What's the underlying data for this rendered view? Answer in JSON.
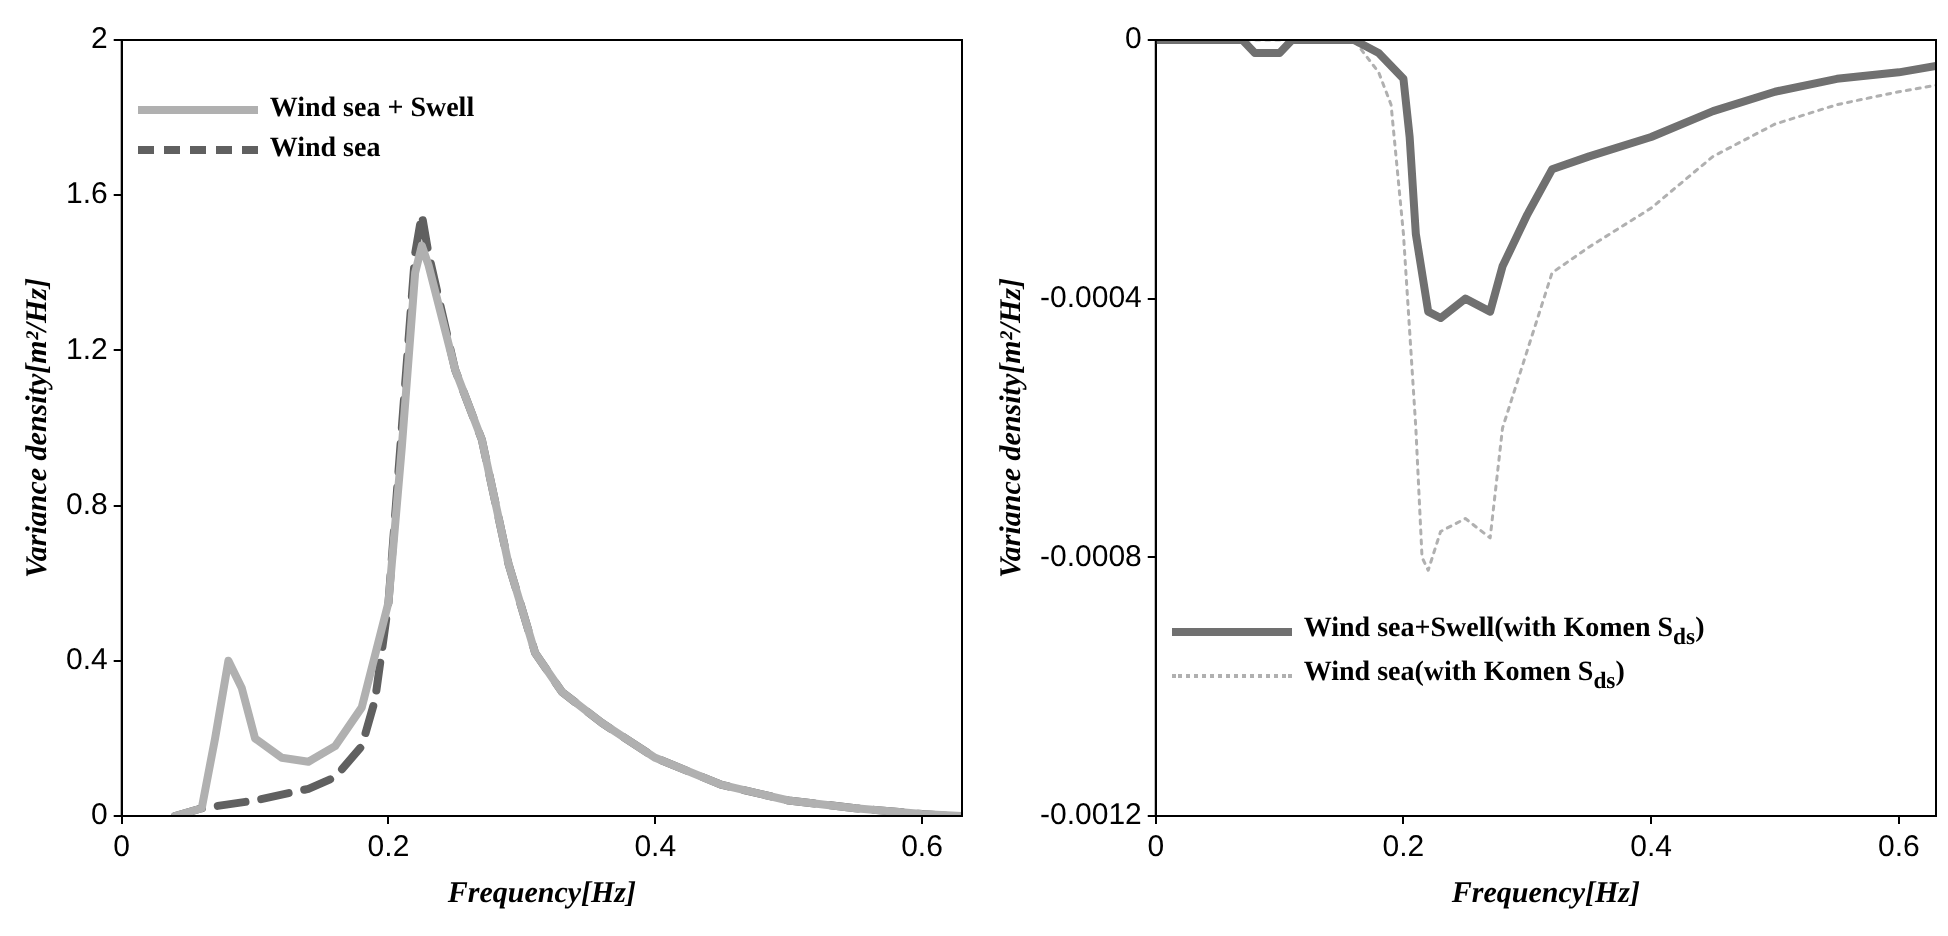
{
  "chart_data": [
    {
      "type": "line",
      "xlabel": "Frequency[Hz]",
      "ylabel": "Variance density[m²/Hz]",
      "xlim": [
        0,
        0.63
      ],
      "ylim": [
        0,
        2
      ],
      "xticks": [
        0,
        0.2,
        0.4,
        0.6
      ],
      "yticks": [
        0,
        0.4,
        0.8,
        1.2,
        1.6,
        2
      ],
      "grid": false,
      "legend": "top left",
      "marker": "none",
      "series": [
        {
          "name": "Wind sea + Swell",
          "color": "#b0b0b0",
          "line_style": "solid",
          "x": [
            0.04,
            0.06,
            0.07,
            0.08,
            0.09,
            0.1,
            0.12,
            0.14,
            0.16,
            0.18,
            0.2,
            0.21,
            0.22,
            0.225,
            0.23,
            0.25,
            0.27,
            0.29,
            0.31,
            0.33,
            0.36,
            0.4,
            0.45,
            0.5,
            0.55,
            0.6,
            0.63
          ],
          "values": [
            0,
            0.02,
            0.2,
            0.4,
            0.33,
            0.2,
            0.15,
            0.14,
            0.18,
            0.28,
            0.55,
            0.95,
            1.4,
            1.47,
            1.42,
            1.15,
            0.97,
            0.65,
            0.42,
            0.32,
            0.24,
            0.15,
            0.08,
            0.04,
            0.02,
            0.005,
            0
          ]
        },
        {
          "name": "Wind sea",
          "color": "#606060",
          "line_style": "dashed",
          "x": [
            0.04,
            0.06,
            0.1,
            0.14,
            0.16,
            0.18,
            0.19,
            0.2,
            0.21,
            0.22,
            0.225,
            0.23,
            0.25,
            0.27,
            0.29,
            0.31,
            0.33,
            0.36,
            0.4,
            0.45,
            0.5,
            0.55,
            0.6,
            0.62
          ],
          "values": [
            0,
            0.02,
            0.04,
            0.07,
            0.1,
            0.18,
            0.3,
            0.55,
            1.0,
            1.45,
            1.55,
            1.45,
            1.15,
            0.97,
            0.65,
            0.42,
            0.32,
            0.24,
            0.15,
            0.08,
            0.04,
            0.02,
            0.005,
            0
          ]
        }
      ]
    },
    {
      "type": "line",
      "xlabel": "Frequency[Hz]",
      "ylabel": "Variance density[m²/Hz]",
      "xlim": [
        0,
        0.63
      ],
      "ylim": [
        -0.0012,
        0
      ],
      "xticks": [
        0,
        0.2,
        0.4,
        0.6
      ],
      "yticks": [
        -0.0012,
        -0.0008,
        -0.0004,
        0
      ],
      "grid": false,
      "legend": "bottom left",
      "marker": "none",
      "series": [
        {
          "name": "Wind sea+Swell(with Komen S$_{ds}$)",
          "color": "#707070",
          "line_style": "solid",
          "x": [
            0,
            0.07,
            0.08,
            0.1,
            0.11,
            0.16,
            0.18,
            0.2,
            0.205,
            0.21,
            0.22,
            0.23,
            0.25,
            0.27,
            0.28,
            0.3,
            0.32,
            0.35,
            0.4,
            0.45,
            0.5,
            0.55,
            0.6,
            0.63
          ],
          "values": [
            0,
            0,
            -2e-05,
            -2e-05,
            0,
            0,
            -2e-05,
            -6e-05,
            -0.00015,
            -0.0003,
            -0.00042,
            -0.00043,
            -0.0004,
            -0.00042,
            -0.00035,
            -0.00027,
            -0.0002,
            -0.00018,
            -0.00015,
            -0.00011,
            -8e-05,
            -6e-05,
            -5e-05,
            -4e-05
          ]
        },
        {
          "name": "Wind sea(with Komen S$_{ds}$)",
          "color": "#b0b0b0",
          "line_style": "dotted",
          "x": [
            0,
            0.16,
            0.18,
            0.19,
            0.2,
            0.21,
            0.215,
            0.22,
            0.23,
            0.25,
            0.27,
            0.28,
            0.3,
            0.32,
            0.35,
            0.4,
            0.45,
            0.5,
            0.55,
            0.6,
            0.63
          ],
          "values": [
            0,
            0,
            -5e-05,
            -0.0001,
            -0.0003,
            -0.0006,
            -0.0008,
            -0.00082,
            -0.00076,
            -0.00074,
            -0.00077,
            -0.0006,
            -0.00048,
            -0.00036,
            -0.00032,
            -0.00026,
            -0.00018,
            -0.00013,
            -0.0001,
            -8e-05,
            -7e-05
          ]
        }
      ]
    }
  ]
}
